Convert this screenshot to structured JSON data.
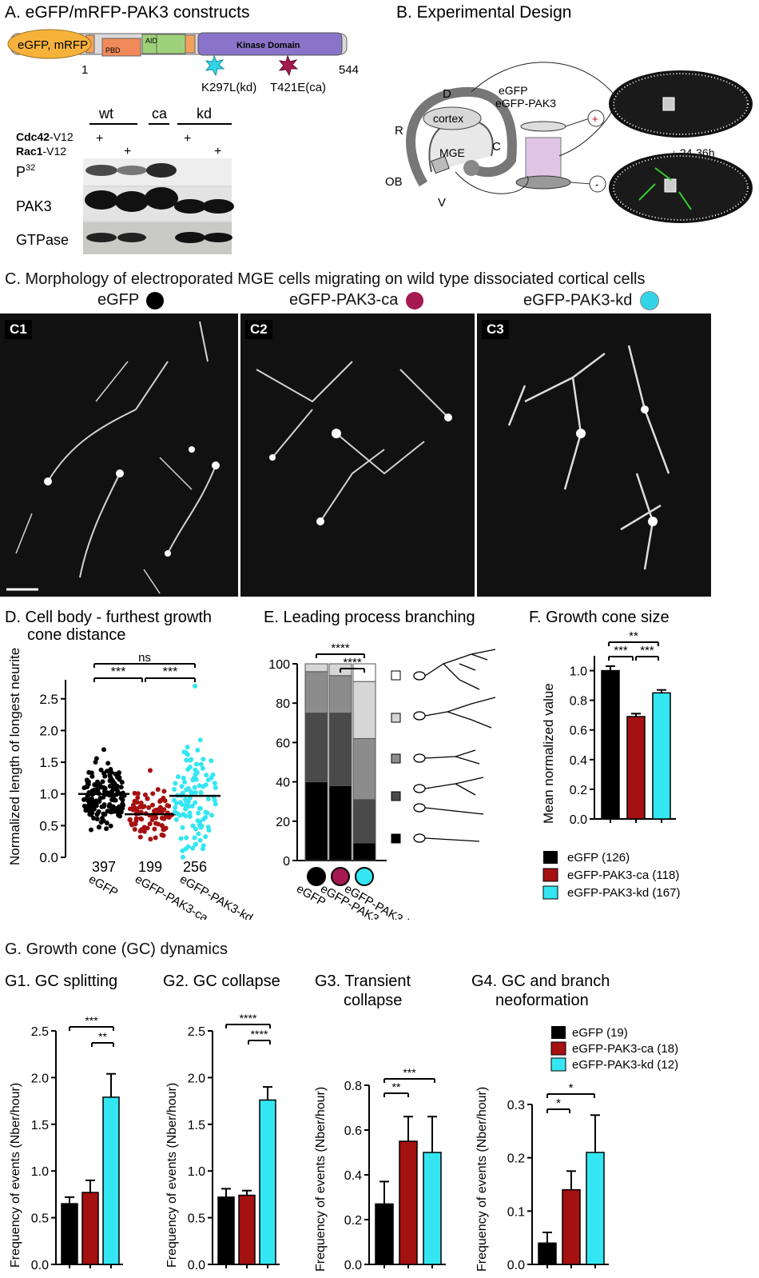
{
  "panelA": {
    "title": "A. eGFP/mRFP-PAK3 constructs",
    "construct": {
      "domain_label": "eGFP, mRFP",
      "pbd": "PBD",
      "aid": "AID",
      "kinase": "Kinase Domain",
      "start": "1",
      "end": "544",
      "mut_kd": "K297L(kd)",
      "mut_ca": "T421E(ca)",
      "colors": {
        "egfp": "#f7b23b",
        "pbd": "#f08a5a",
        "aid": "#9ed27a",
        "kinase": "#8a74c9",
        "kd_star": "#33d4e6",
        "ca_star": "#a51850"
      }
    },
    "blot": {
      "groups": [
        "wt",
        "ca",
        "kd"
      ],
      "cdc42": "Cdc42",
      "cdc42_suffix": "-V12",
      "rac1": "Rac1",
      "rac1_suffix": "-V12",
      "plus": "+",
      "rows": [
        "P",
        "PAK3",
        "GTPase"
      ],
      "p_sup": "32"
    }
  },
  "panelB": {
    "title": "B. Experimental Design",
    "labels": {
      "d": "D",
      "r": "R",
      "c": "C",
      "ob": "OB",
      "v": "V",
      "cortex": "cortex",
      "mge": "MGE",
      "egfp": "eGFP",
      "egfp_pak3": "eGFP-PAK3",
      "time": "24-36h",
      "plus": "+",
      "minus": "-"
    }
  },
  "panelC": {
    "title": "C. Morphology of electroporated MGE cells migrating on wild type dissociated cortical cells",
    "columns": [
      {
        "label": "eGFP",
        "color": "#000000",
        "tag": "C1"
      },
      {
        "label": "eGFP-PAK3-ca",
        "color": "#a51850",
        "tag": "C2"
      },
      {
        "label": "eGFP-PAK3-kd",
        "color": "#33d4e6",
        "tag": "C3"
      }
    ]
  },
  "panelD": {
    "title1": "D. Cell body - furthest growth",
    "title2": "cone distance",
    "ylabel": "Normalized length of longest neurite",
    "sig": [
      "***",
      "***",
      "ns"
    ]
  },
  "panelE": {
    "title": "E. Leading process branching",
    "sig": [
      "****",
      "****"
    ]
  },
  "panelF": {
    "title": "F. Growth cone size",
    "ylabel": "Mean normalized value",
    "sig": [
      "***",
      "***",
      "**"
    ],
    "legend": [
      "eGFP (126)",
      "eGFP-PAK3-ca (118)",
      "eGFP-PAK3-kd (167)"
    ]
  },
  "panelG": {
    "title": "G. Growth cone (GC) dynamics",
    "g1": "G1. GC splitting",
    "g2": "G2. GC collapse",
    "g3a": "G3. Transient",
    "g3b": "collapse",
    "g4a": "G4. GC and branch",
    "g4b": "neoformation",
    "ylabel": "Frequency of events (Nber/hour)",
    "legend": [
      "eGFP (19)",
      "eGFP-PAK3-ca (18)",
      "eGFP-PAK3-kd (12)"
    ]
  },
  "colors": {
    "egfp": "#000000",
    "ca": "#a51010",
    "kd": "#33e6f2",
    "ca_dot": "#a51010",
    "kd_dot": "#33e6f2"
  },
  "chart_data": [
    {
      "id": "D",
      "type": "scatter",
      "categories": [
        "eGFP",
        "eGFP-PAK3-ca",
        "eGFP-PAK3-kd"
      ],
      "n_labels": [
        "397",
        "199",
        "256"
      ],
      "means": [
        1.0,
        0.68,
        0.97
      ],
      "min": [
        0.3,
        0.25,
        0.4
      ],
      "max": [
        1.7,
        1.37,
        2.7
      ],
      "yticks": [
        "0.0",
        "0.5",
        "1.0",
        "1.5",
        "2.0",
        "2.5"
      ],
      "ylim": [
        0,
        2.8
      ]
    },
    {
      "id": "E",
      "type": "bar",
      "categories": [
        "eGFP",
        "eGFP-PAK3-ca",
        "eGFP-PAK3-kd"
      ],
      "stacked": true,
      "series": [
        {
          "values": [
            40,
            38,
            9
          ],
          "color": "#000000"
        },
        {
          "values": [
            35,
            37,
            22
          ],
          "color": "#4a4a4a"
        },
        {
          "values": [
            21,
            19,
            31
          ],
          "color": "#8c8c8c"
        },
        {
          "values": [
            4,
            6,
            29
          ],
          "color": "#d6d6d6"
        },
        {
          "values": [
            0,
            0,
            9
          ],
          "color": "#ffffff"
        }
      ],
      "yticks": [
        "0",
        "20",
        "40",
        "60",
        "80",
        "100"
      ],
      "ylim": [
        0,
        100
      ]
    },
    {
      "id": "F",
      "type": "bar",
      "categories": [
        "eGFP",
        "eGFP-PAK3-ca",
        "eGFP-PAK3-kd"
      ],
      "values": [
        1.0,
        0.69,
        0.85
      ],
      "errors": [
        0.03,
        0.02,
        0.02
      ],
      "yticks": [
        "0.0",
        "0.2",
        "0.4",
        "0.6",
        "0.8",
        "1.0"
      ],
      "ylim": [
        0,
        1.1
      ]
    },
    {
      "id": "G1",
      "type": "bar",
      "categories": [
        "eGFP",
        "eGFP-PAK3-ca",
        "eGFP-PAK3-kd"
      ],
      "values": [
        0.65,
        0.77,
        1.79
      ],
      "errors": [
        0.07,
        0.13,
        0.25
      ],
      "yticks": [
        "0.0",
        "0.5",
        "1.0",
        "1.5",
        "2.0",
        "2.5"
      ],
      "ylim": [
        0,
        2.5
      ],
      "sig": [
        "***",
        "**"
      ]
    },
    {
      "id": "G2",
      "type": "bar",
      "categories": [
        "eGFP",
        "eGFP-PAK3-ca",
        "eGFP-PAK3-kd"
      ],
      "values": [
        0.72,
        0.74,
        1.76
      ],
      "errors": [
        0.09,
        0.05,
        0.14
      ],
      "yticks": [
        "0.0",
        "0.5",
        "1.0",
        "1.5",
        "2.0",
        "2.5"
      ],
      "ylim": [
        0,
        2.5
      ],
      "sig": [
        "****",
        "****"
      ]
    },
    {
      "id": "G3",
      "type": "bar",
      "categories": [
        "eGFP",
        "eGFP-PAK3-ca",
        "eGFP-PAK3-kd"
      ],
      "values": [
        0.27,
        0.55,
        0.5
      ],
      "errors": [
        0.1,
        0.11,
        0.16
      ],
      "yticks": [
        "0.0",
        "0.2",
        "0.4",
        "0.6",
        "0.8"
      ],
      "ylim": [
        0,
        0.8
      ],
      "sig": [
        "***",
        "**"
      ]
    },
    {
      "id": "G4",
      "type": "bar",
      "categories": [
        "eGFP",
        "eGFP-PAK3-ca",
        "eGFP-PAK3-kd"
      ],
      "values": [
        0.04,
        0.14,
        0.21
      ],
      "errors": [
        0.02,
        0.035,
        0.07
      ],
      "yticks": [
        "0.0",
        "0.1",
        "0.2",
        "0.3"
      ],
      "ylim": [
        0,
        0.3
      ],
      "sig": [
        "*",
        "*"
      ]
    }
  ]
}
